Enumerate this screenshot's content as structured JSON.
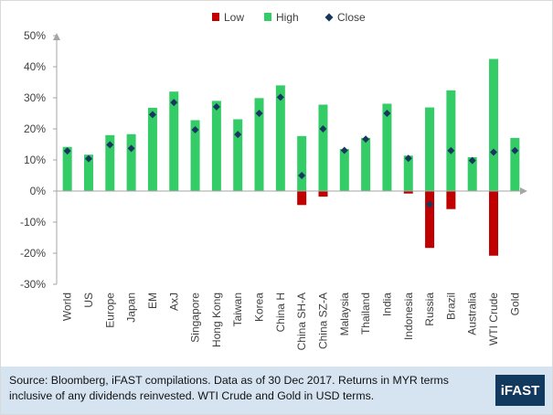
{
  "chart_data": {
    "type": "bar",
    "categories": [
      "World",
      "US",
      "Europe",
      "Japan",
      "EM",
      "AxJ",
      "Singapore",
      "Hong Kong",
      "Taiwan",
      "Korea",
      "China H",
      "China SH-A",
      "China SZ-A",
      "Malaysia",
      "Thailand",
      "India",
      "Indonesia",
      "Russia",
      "Brazil",
      "Australia",
      "WTI Crude",
      "Gold"
    ],
    "series": [
      {
        "name": "Low",
        "type": "bar",
        "color": "#c00000",
        "values": [
          0,
          0,
          0,
          0,
          0,
          0,
          0,
          0,
          0,
          0,
          0,
          -4.5,
          -1.8,
          0,
          0,
          0,
          -0.8,
          -18.3,
          -5.8,
          0,
          -20.8,
          0
        ]
      },
      {
        "name": "High",
        "type": "bar",
        "color": "#33cc66",
        "values": [
          14.2,
          11.7,
          18.0,
          18.3,
          26.8,
          32.0,
          22.8,
          29.0,
          23.1,
          29.9,
          34.0,
          17.7,
          27.8,
          13.5,
          17.1,
          28.1,
          11.4,
          26.9,
          32.4,
          10.9,
          42.5,
          17.1
        ]
      },
      {
        "name": "Close",
        "type": "marker",
        "color": "#17375e",
        "values": [
          12.9,
          10.4,
          14.9,
          13.7,
          24.6,
          28.5,
          19.7,
          27.1,
          18.2,
          25.0,
          30.2,
          5.0,
          20.0,
          13.1,
          16.7,
          25.0,
          10.5,
          -4.3,
          13.0,
          9.8,
          12.5,
          13.0
        ]
      }
    ],
    "ylim": [
      -30,
      50
    ],
    "yticks": [
      "-30%",
      "-20%",
      "-10%",
      "0%",
      "10%",
      "20%",
      "30%",
      "40%",
      "50%"
    ],
    "ytick_values": [
      -30,
      -20,
      -10,
      0,
      10,
      20,
      30,
      40,
      50
    ],
    "legend_position": "top",
    "grid": false
  },
  "footer": {
    "source_text": "Source: Bloomberg, iFAST compilations. Data as of 30 Dec 2017.  Returns in MYR terms inclusive of any dividends reinvested. WTI Crude and Gold in USD terms.",
    "logo_text": "iFAST"
  }
}
